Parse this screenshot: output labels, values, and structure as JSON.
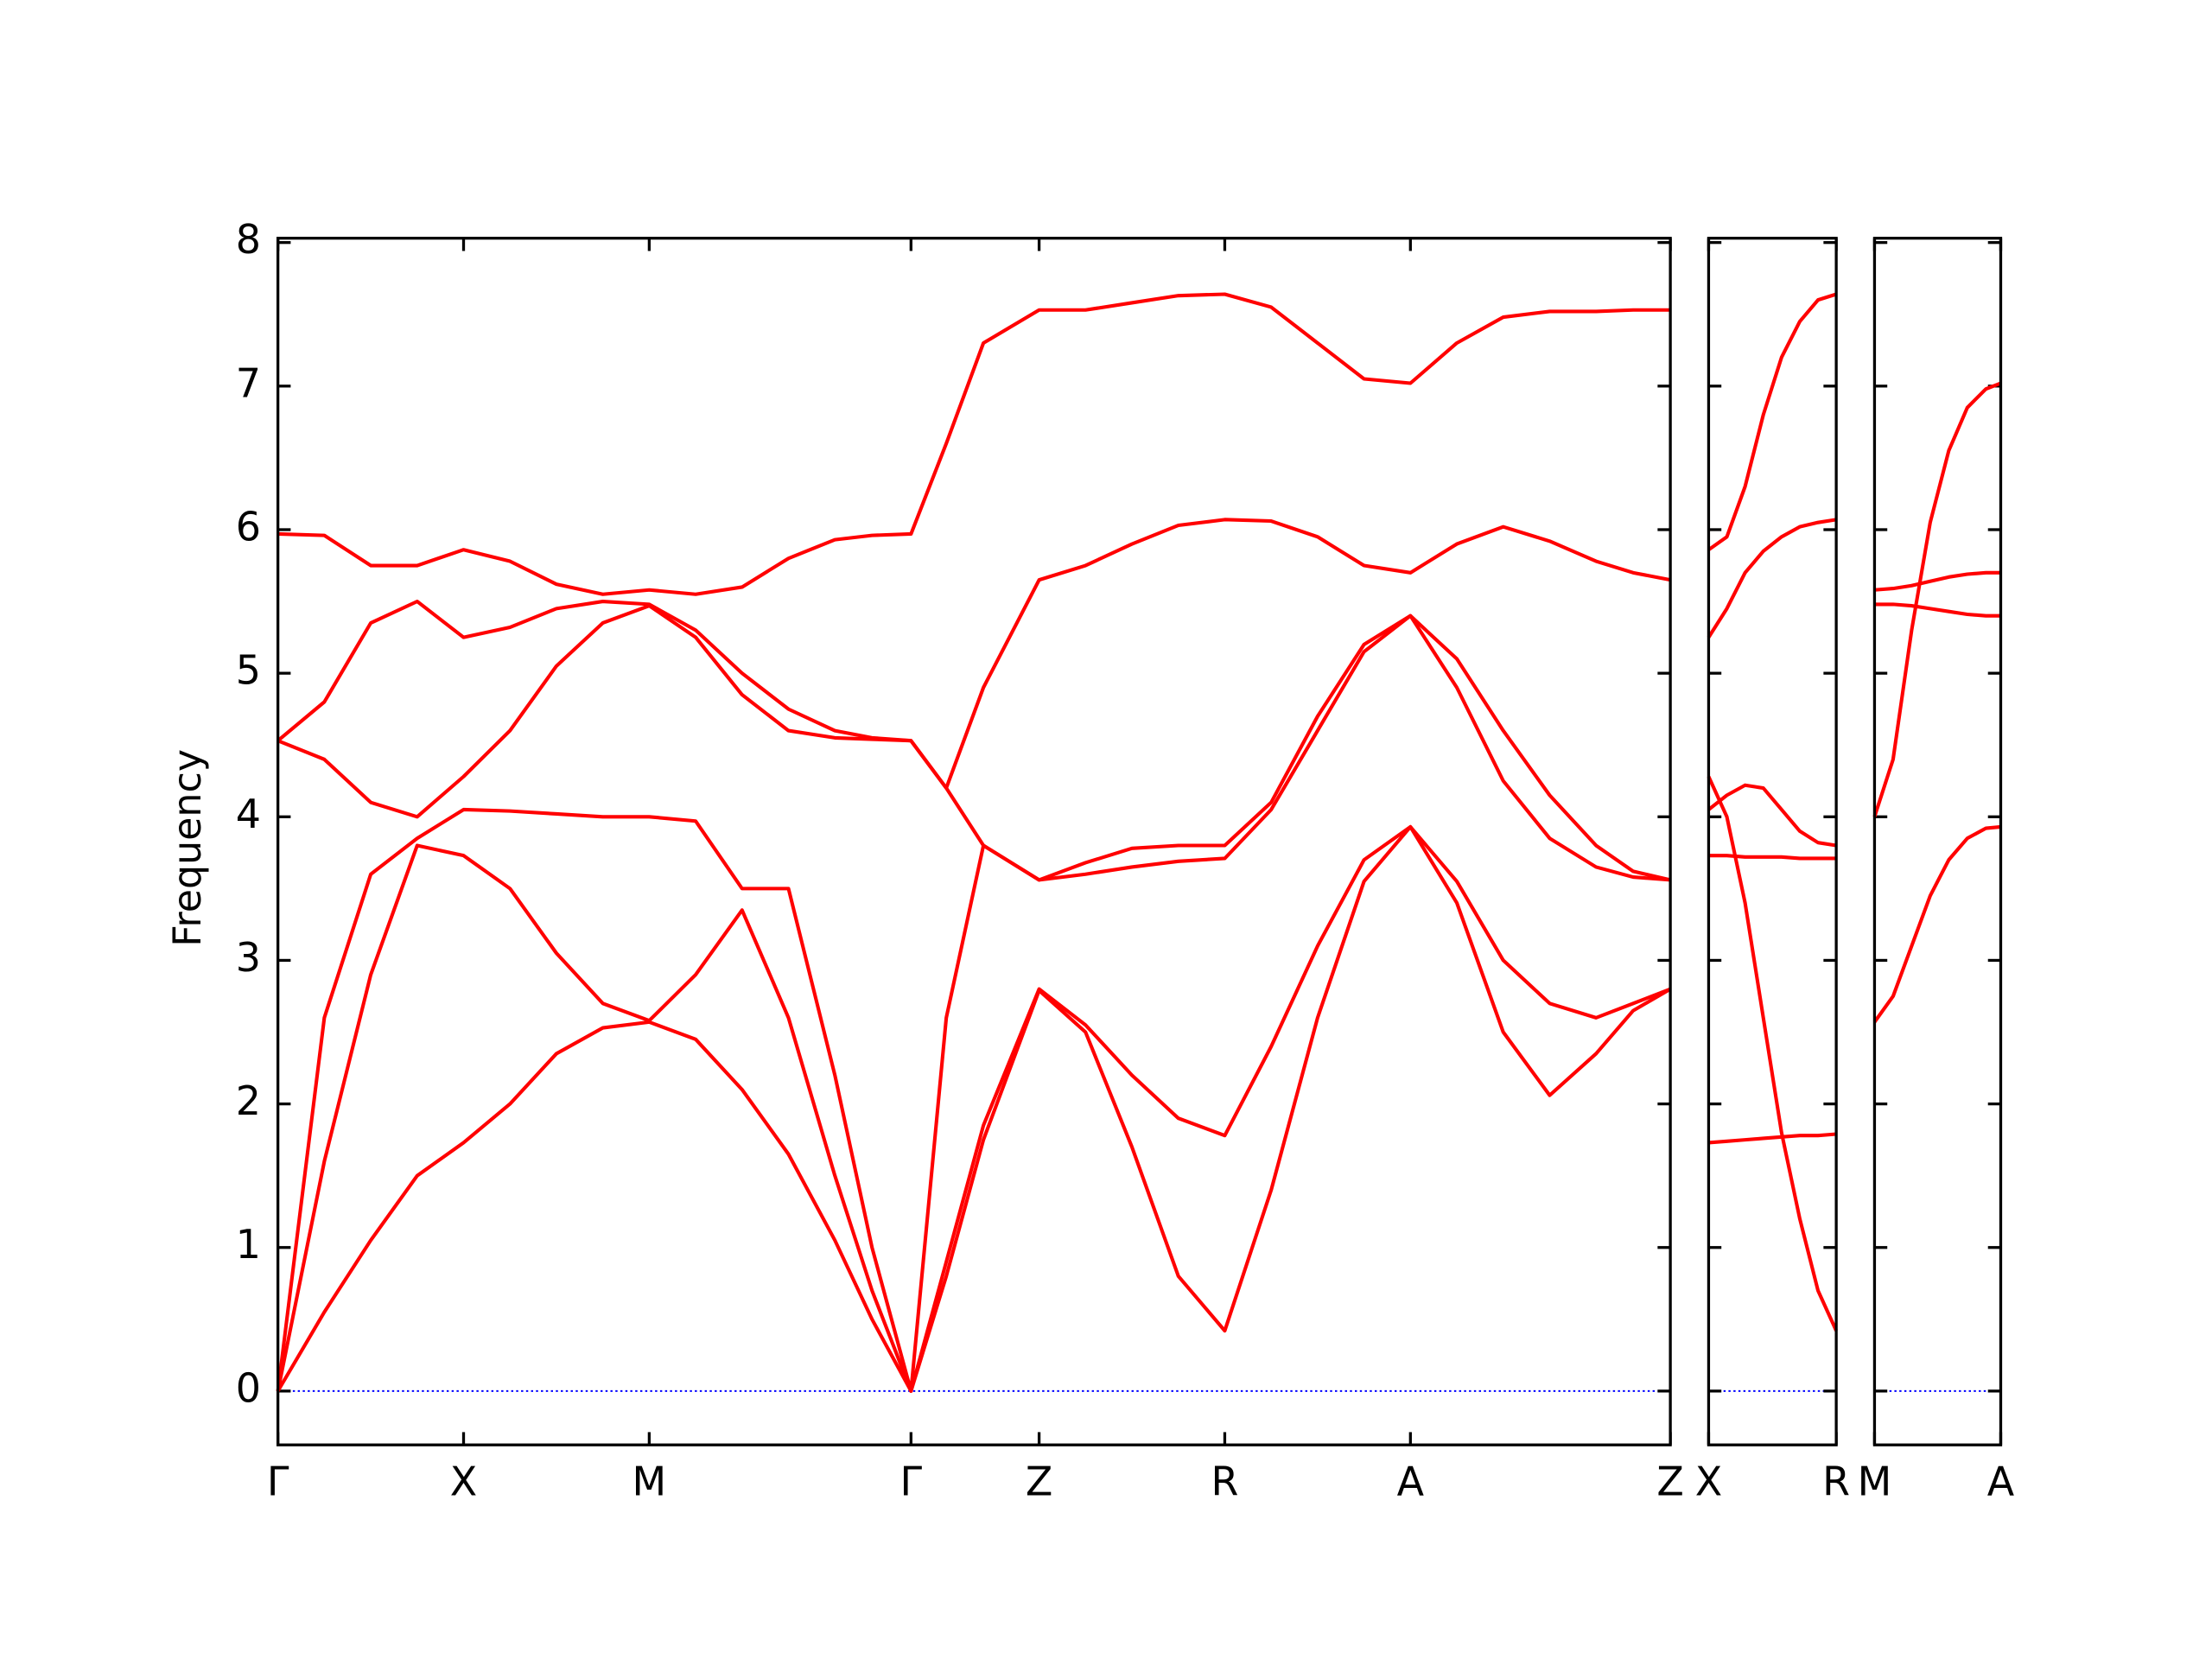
{
  "chart_data": [
    {
      "type": "line",
      "ylabel": "Frequency",
      "show_ytick_labels": true,
      "zero_line_color": "#0000ff",
      "xlim": [
        0,
        7.5
      ],
      "ylim": [
        -0.375,
        8.03
      ],
      "yticks": [
        0,
        1,
        2,
        3,
        4,
        5,
        6,
        7,
        8
      ],
      "xticks": [
        {
          "value": 0,
          "label": "Γ"
        },
        {
          "value": 1,
          "label": "X"
        },
        {
          "value": 2,
          "label": "M"
        },
        {
          "value": 3.41,
          "label": "Γ"
        },
        {
          "value": 4.1,
          "label": "Z"
        },
        {
          "value": 5.1,
          "label": "R"
        },
        {
          "value": 6.1,
          "label": "A"
        },
        {
          "value": 7.5,
          "label": "Z"
        }
      ],
      "x": [
        0,
        0.25,
        0.5,
        0.75,
        1,
        1.25,
        1.5,
        1.75,
        2,
        2.25,
        2.5,
        2.75,
        3,
        3.2,
        3.41,
        3.6,
        3.8,
        4.1,
        4.35,
        4.6,
        4.85,
        5.1,
        5.35,
        5.6,
        5.85,
        6.1,
        6.35,
        6.6,
        6.85,
        7.1,
        7.3,
        7.5
      ],
      "series": [
        {
          "color": "#ff0000",
          "values": [
            0,
            0.55,
            1.05,
            1.5,
            1.73,
            2.0,
            2.35,
            2.53,
            2.57,
            2.45,
            2.1,
            1.65,
            1.05,
            0.5,
            0,
            0.8,
            1.75,
            2.79,
            2.5,
            1.7,
            0.8,
            0.42,
            1.4,
            2.6,
            3.55,
            3.93,
            3.4,
            2.5,
            2.06,
            2.35,
            2.65,
            2.8
          ]
        },
        {
          "color": "#ff0000",
          "values": [
            0,
            1.6,
            2.9,
            3.8,
            3.73,
            3.5,
            3.05,
            2.7,
            2.58,
            2.9,
            3.35,
            2.6,
            1.5,
            0.7,
            0,
            0.9,
            1.85,
            2.8,
            2.55,
            2.2,
            1.9,
            1.78,
            2.4,
            3.1,
            3.7,
            3.93,
            3.55,
            3.0,
            2.7,
            2.6,
            2.7,
            2.8
          ]
        },
        {
          "color": "#ff0000",
          "values": [
            0,
            2.6,
            3.6,
            3.85,
            4.05,
            4.04,
            4.02,
            4.0,
            4.0,
            3.97,
            3.5,
            3.5,
            2.2,
            1.0,
            0,
            2.6,
            3.8,
            3.56,
            3.6,
            3.65,
            3.69,
            3.71,
            4.05,
            4.6,
            5.15,
            5.4,
            4.9,
            4.25,
            3.85,
            3.65,
            3.58,
            3.56
          ]
        },
        {
          "color": "#ff0000",
          "values": [
            4.53,
            4.4,
            4.1,
            4.0,
            4.28,
            4.6,
            5.05,
            5.35,
            5.47,
            5.25,
            4.85,
            4.6,
            4.55,
            4.54,
            4.53,
            4.2,
            3.8,
            3.56,
            3.68,
            3.78,
            3.8,
            3.8,
            4.1,
            4.7,
            5.2,
            5.4,
            5.1,
            4.6,
            4.15,
            3.8,
            3.62,
            3.56
          ]
        },
        {
          "color": "#ff0000",
          "values": [
            4.53,
            4.8,
            5.35,
            5.5,
            5.25,
            5.32,
            5.45,
            5.5,
            5.48,
            5.3,
            5.0,
            4.75,
            4.6,
            4.55,
            4.53,
            4.2,
            4.9,
            5.65,
            5.75,
            5.9,
            6.03,
            6.07,
            6.06,
            5.95,
            5.75,
            5.7,
            5.9,
            6.02,
            5.92,
            5.78,
            5.7,
            5.65
          ]
        },
        {
          "color": "#ff0000",
          "values": [
            5.97,
            5.96,
            5.75,
            5.75,
            5.86,
            5.78,
            5.62,
            5.55,
            5.58,
            5.55,
            5.6,
            5.8,
            5.93,
            5.96,
            5.97,
            6.6,
            7.3,
            7.53,
            7.53,
            7.58,
            7.63,
            7.64,
            7.55,
            7.3,
            7.05,
            7.02,
            7.3,
            7.48,
            7.52,
            7.52,
            7.53,
            7.53
          ]
        }
      ]
    },
    {
      "type": "line",
      "show_ytick_labels": false,
      "zero_line_color": "#0000ff",
      "xlim": [
        0,
        0.7
      ],
      "ylim": [
        -0.375,
        8.03
      ],
      "yticks": [
        0,
        1,
        2,
        3,
        4,
        5,
        6,
        7,
        8
      ],
      "xticks": [
        {
          "value": 0,
          "label": "X"
        },
        {
          "value": 0.7,
          "label": "R"
        }
      ],
      "x": [
        0,
        0.1,
        0.2,
        0.3,
        0.4,
        0.5,
        0.6,
        0.7
      ],
      "series": [
        {
          "color": "#ff0000",
          "values": [
            1.73,
            1.74,
            1.75,
            1.76,
            1.77,
            1.78,
            1.78,
            1.79
          ]
        },
        {
          "color": "#ff0000",
          "values": [
            4.28,
            4.0,
            3.4,
            2.6,
            1.8,
            1.2,
            0.7,
            0.42
          ]
        },
        {
          "color": "#ff0000",
          "values": [
            3.73,
            3.73,
            3.72,
            3.72,
            3.72,
            3.71,
            3.71,
            3.71
          ]
        },
        {
          "color": "#ff0000",
          "values": [
            4.05,
            4.15,
            4.22,
            4.2,
            4.05,
            3.9,
            3.82,
            3.8
          ]
        },
        {
          "color": "#ff0000",
          "values": [
            5.25,
            5.45,
            5.7,
            5.85,
            5.95,
            6.02,
            6.05,
            6.07
          ]
        },
        {
          "color": "#ff0000",
          "values": [
            5.86,
            5.95,
            6.3,
            6.8,
            7.2,
            7.45,
            7.6,
            7.64
          ]
        }
      ]
    },
    {
      "type": "line",
      "show_ytick_labels": false,
      "zero_line_color": "#0000ff",
      "xlim": [
        0,
        0.68
      ],
      "ylim": [
        -0.375,
        8.03
      ],
      "yticks": [
        0,
        1,
        2,
        3,
        4,
        5,
        6,
        7,
        8
      ],
      "xticks": [
        {
          "value": 0,
          "label": "M"
        },
        {
          "value": 0.68,
          "label": "A"
        }
      ],
      "x": [
        0,
        0.1,
        0.2,
        0.3,
        0.4,
        0.5,
        0.6,
        0.68
      ],
      "series": [
        {
          "color": "#ff0000",
          "values": [
            2.57,
            2.75,
            3.1,
            3.45,
            3.7,
            3.85,
            3.92,
            3.93
          ]
        },
        {
          "color": "#ff0000",
          "values": [
            4.0,
            4.4,
            5.3,
            6.05,
            6.55,
            6.85,
            6.98,
            7.02
          ]
        },
        {
          "color": "#ff0000",
          "values": [
            5.48,
            5.48,
            5.47,
            5.45,
            5.43,
            5.41,
            5.4,
            5.4
          ]
        },
        {
          "color": "#ff0000",
          "values": [
            5.58,
            5.59,
            5.61,
            5.64,
            5.67,
            5.69,
            5.7,
            5.7
          ]
        }
      ]
    }
  ]
}
